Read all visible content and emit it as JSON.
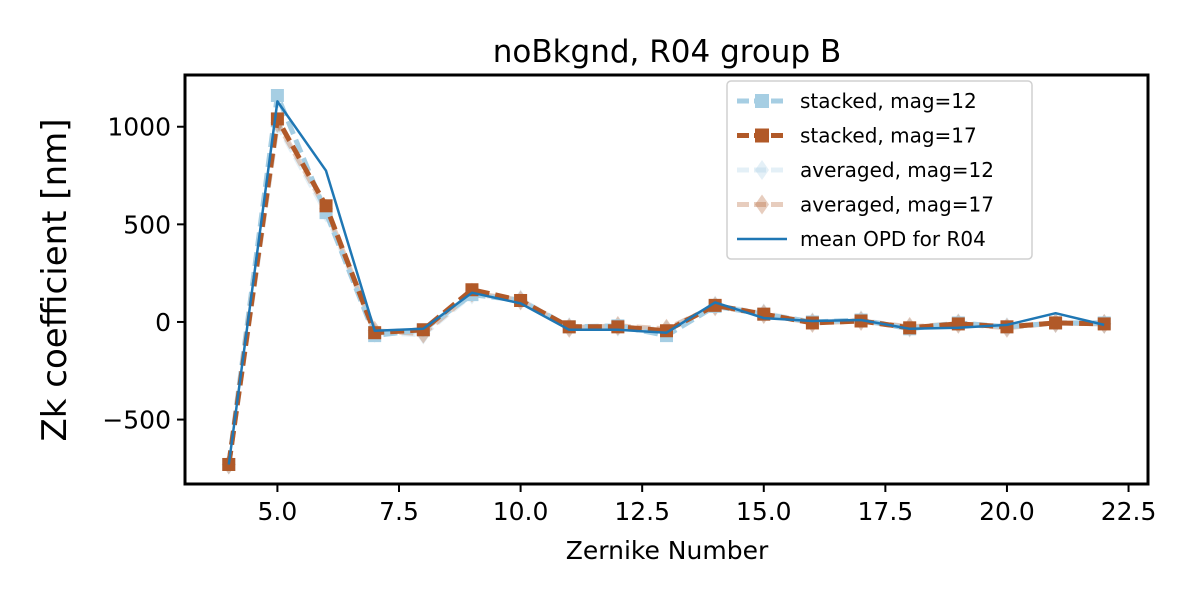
{
  "chart_data": {
    "type": "line",
    "title": "noBkgnd, R04 group B",
    "xlabel": "Zernike Number",
    "ylabel": "Zk coefficient [nm]",
    "xlim": [
      3.1,
      22.9
    ],
    "ylim": [
      -830,
      1265
    ],
    "xticks": [
      5.0,
      7.5,
      10.0,
      12.5,
      15.0,
      17.5,
      20.0,
      22.5
    ],
    "xtick_labels": [
      "5.0",
      "7.5",
      "10.0",
      "12.5",
      "15.0",
      "17.5",
      "20.0",
      "22.5"
    ],
    "yticks": [
      -500,
      0,
      500,
      1000
    ],
    "ytick_labels": [
      "−500",
      "0",
      "500",
      "1000"
    ],
    "grid": false,
    "legend_position": "upper-right",
    "x": [
      4,
      5,
      6,
      7,
      8,
      9,
      10,
      11,
      12,
      13,
      14,
      15,
      16,
      17,
      18,
      19,
      20,
      21,
      22
    ],
    "series": [
      {
        "name": "averaged, mag=12",
        "color": "#a6cee3",
        "alpha": 0.3,
        "linestyle": "dashed",
        "marker": "diamond",
        "values": [
          -730,
          1010,
          560,
          -55,
          -65,
          140,
          115,
          -25,
          -25,
          -40,
          85,
          45,
          0,
          10,
          -30,
          -5,
          -25,
          -5,
          -10
        ]
      },
      {
        "name": "averaged, mag=17",
        "color": "#b15928",
        "alpha": 0.3,
        "linestyle": "dashed",
        "marker": "diamond",
        "values": [
          -730,
          1020,
          580,
          -45,
          -60,
          150,
          110,
          -30,
          -20,
          -35,
          80,
          40,
          -5,
          5,
          -25,
          -10,
          -30,
          -5,
          -10
        ]
      },
      {
        "name": "stacked, mag=12",
        "color": "#a6cee3",
        "alpha": 1.0,
        "linestyle": "dashed",
        "marker": "square",
        "values": [
          -730,
          1160,
          560,
          -70,
          -40,
          140,
          110,
          -25,
          -20,
          -70,
          80,
          40,
          0,
          10,
          -35,
          -5,
          -25,
          -5,
          -5
        ]
      },
      {
        "name": "stacked, mag=17",
        "color": "#b15928",
        "alpha": 1.0,
        "linestyle": "dashed",
        "marker": "square",
        "values": [
          -730,
          1040,
          595,
          -55,
          -40,
          165,
          110,
          -25,
          -25,
          -45,
          85,
          40,
          -5,
          5,
          -30,
          -10,
          -25,
          -5,
          -10
        ]
      },
      {
        "name": "mean OPD for R04",
        "color": "#1f77b4",
        "alpha": 1.0,
        "linestyle": "solid",
        "marker": "none",
        "values": [
          -730,
          1130,
          775,
          -45,
          -35,
          150,
          95,
          -40,
          -40,
          -55,
          100,
          20,
          5,
          10,
          -35,
          -30,
          -15,
          45,
          -15
        ]
      }
    ],
    "legend_order": [
      "stacked, mag=12",
      "stacked, mag=17",
      "averaged, mag=12",
      "averaged, mag=17",
      "mean OPD for R04"
    ]
  }
}
